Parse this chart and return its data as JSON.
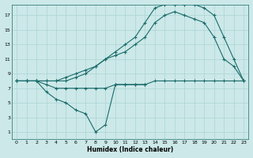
{
  "xlabel": "Humidex (Indice chaleur)",
  "bg_color": "#cce8e8",
  "grid_color": "#aad4d4",
  "line_color": "#1a6b6b",
  "xlim": [
    -0.5,
    23.5
  ],
  "ylim": [
    0,
    18.5
  ],
  "xticks": [
    0,
    1,
    2,
    3,
    4,
    5,
    6,
    7,
    8,
    9,
    10,
    11,
    12,
    13,
    14,
    15,
    16,
    17,
    18,
    19,
    20,
    21,
    22,
    23
  ],
  "yticks": [
    1,
    3,
    5,
    7,
    9,
    11,
    13,
    15,
    17
  ],
  "s1_x": [
    0,
    1,
    2,
    3,
    4,
    5,
    6,
    7,
    8,
    9,
    10,
    11,
    12,
    13,
    14,
    15,
    16,
    17,
    18,
    19,
    20,
    21,
    22,
    23
  ],
  "s1_y": [
    8,
    8,
    8,
    7.5,
    7,
    7,
    7,
    7,
    7,
    7,
    7.5,
    7.5,
    7.5,
    7.5,
    8,
    8,
    8,
    8,
    8,
    8,
    8,
    8,
    8,
    8
  ],
  "s2_x": [
    0,
    1,
    2,
    3,
    4,
    5,
    6,
    7,
    8,
    9,
    10,
    11,
    12,
    13
  ],
  "s2_y": [
    8,
    8,
    8,
    6.5,
    5.5,
    5,
    4,
    3.5,
    1,
    2,
    7.5,
    7.5,
    7.5,
    7.5
  ],
  "s3_x": [
    0,
    1,
    2,
    3,
    4,
    5,
    6,
    7,
    8,
    9,
    10,
    11,
    12,
    13,
    14,
    15,
    16,
    17,
    18,
    19,
    20,
    21,
    22,
    23
  ],
  "s3_y": [
    8,
    8,
    8,
    8,
    8,
    8.5,
    9,
    9.5,
    10,
    11,
    12,
    13,
    14,
    16,
    18,
    18.5,
    18.5,
    18.5,
    18.5,
    18,
    17,
    14,
    11,
    8
  ],
  "s4_x": [
    0,
    1,
    2,
    3,
    4,
    5,
    6,
    7,
    8,
    9,
    10,
    11,
    12,
    13,
    14,
    15,
    16,
    17,
    18,
    19,
    20,
    21,
    22,
    23
  ],
  "s4_y": [
    8,
    8,
    8,
    8,
    8,
    8,
    8.5,
    9,
    10,
    11,
    11.5,
    12,
    13,
    14,
    16,
    17,
    17.5,
    17,
    16.5,
    16,
    14,
    11,
    10,
    8
  ]
}
